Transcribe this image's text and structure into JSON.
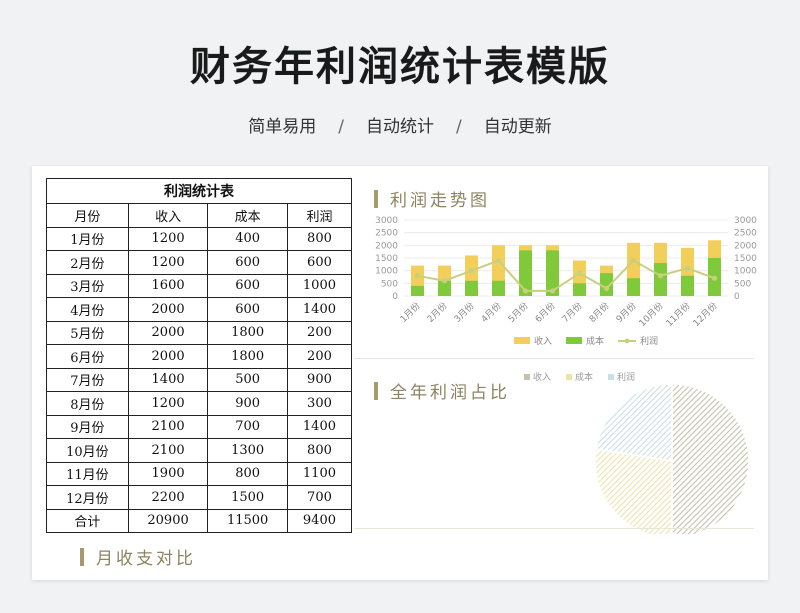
{
  "page": {
    "title": "财务年利润统计表模版",
    "features": [
      "简单易用",
      "自动统计",
      "自动更新"
    ],
    "separator": "/"
  },
  "table": {
    "caption": "利润统计表",
    "headers": [
      "月份",
      "收入",
      "成本",
      "利润"
    ],
    "rows": [
      [
        "1月份",
        "1200",
        "400",
        "800"
      ],
      [
        "2月份",
        "1200",
        "600",
        "600"
      ],
      [
        "3月份",
        "1600",
        "600",
        "1000"
      ],
      [
        "4月份",
        "2000",
        "600",
        "1400"
      ],
      [
        "5月份",
        "2000",
        "1800",
        "200"
      ],
      [
        "6月份",
        "2000",
        "1800",
        "200"
      ],
      [
        "7月份",
        "1400",
        "500",
        "900"
      ],
      [
        "8月份",
        "1200",
        "900",
        "300"
      ],
      [
        "9月份",
        "2100",
        "700",
        "1400"
      ],
      [
        "10月份",
        "2100",
        "1300",
        "800"
      ],
      [
        "11月份",
        "1900",
        "800",
        "1100"
      ],
      [
        "12月份",
        "2200",
        "1500",
        "700"
      ]
    ],
    "total": [
      "合计",
      "20900",
      "11500",
      "9400"
    ]
  },
  "sections": {
    "trend": "利润走势图",
    "share": "全年利润占比",
    "monthly": "月收支对比"
  },
  "chart_data": [
    {
      "type": "bar",
      "title": "利润走势图",
      "categories": [
        "1月份",
        "2月份",
        "3月份",
        "4月份",
        "5月份",
        "6月份",
        "7月份",
        "8月份",
        "9月份",
        "10月份",
        "11月份",
        "12月份"
      ],
      "series": [
        {
          "name": "收入",
          "kind": "bar",
          "color": "#f2cf5b",
          "values": [
            1200,
            1200,
            1600,
            2000,
            2000,
            2000,
            1400,
            1200,
            2100,
            2100,
            1900,
            2200
          ]
        },
        {
          "name": "成本",
          "kind": "bar",
          "color": "#7fc93a",
          "values": [
            400,
            600,
            600,
            600,
            1800,
            1800,
            500,
            900,
            700,
            1300,
            800,
            1500
          ]
        },
        {
          "name": "利润",
          "kind": "line",
          "color": "#c9cf7e",
          "values": [
            800,
            600,
            1000,
            1400,
            200,
            200,
            900,
            300,
            1400,
            800,
            1100,
            700
          ]
        }
      ],
      "ylim": [
        0,
        3000
      ],
      "yticks": [
        0,
        500,
        1000,
        1500,
        2000,
        2500,
        3000
      ],
      "secondary_yticks": [
        0,
        500,
        1000,
        1500,
        2000,
        2500,
        3000
      ],
      "legend": "bottom",
      "grid": true
    },
    {
      "type": "pie",
      "title": "全年利润占比",
      "categories": [
        "收入",
        "成本",
        "利润"
      ],
      "values": [
        20900,
        11500,
        9400
      ],
      "colors": [
        "#c6c2ad",
        "#ece4a8",
        "#c9e0e6"
      ],
      "legend": "top"
    }
  ]
}
